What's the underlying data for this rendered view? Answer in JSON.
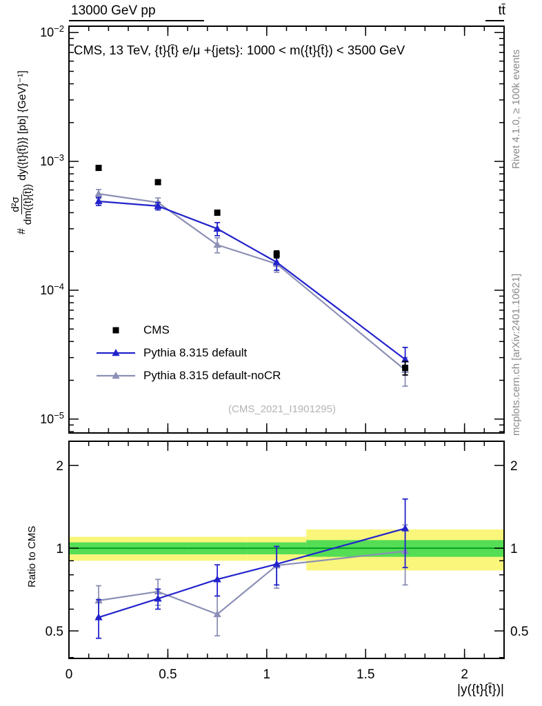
{
  "header": {
    "left": "13000 GeV pp",
    "right": "tt̄"
  },
  "title": "CMS, 13 TeV, {t}{t̄} e/μ +{jets}: 1000 < m({t}{t̄}) < 3500 GeV",
  "watermark": "(CMS_2021_I1901295)",
  "side_notes": {
    "top": "Rivet 4.1.0, ≥ 100k events",
    "bottom": "mcplots.cern.ch [arXiv:2401.10621]"
  },
  "ylabel": {
    "prefix": "#",
    "numerator": "d²σ",
    "denominator": "dm({t}{t̄})",
    "rest": "dy({t}{t̄})} [pb] {GeV}⁻¹]"
  },
  "ratio_ylabel": "Ratio to CMS",
  "xlabel": "|y({t}{t̄})|",
  "legend": [
    {
      "label": "CMS",
      "marker": "square",
      "color": "#000000",
      "line": false
    },
    {
      "label": "Pythia 8.315 default",
      "marker": "triangle",
      "color": "#2222cc",
      "line": true
    },
    {
      "label": "Pythia 8.315 default-noCR",
      "marker": "triangle",
      "color": "#8b8fb5",
      "line": true
    }
  ],
  "colors": {
    "cms": "#000000",
    "pythia_default": "#2222cc",
    "pythia_nocr": "#8b8fb5",
    "band_yellow": "#f9f67b",
    "band_green": "#55dd55",
    "band_center_line": "#00a223"
  },
  "chart_data": {
    "type": "line",
    "x": [
      0.15,
      0.45,
      0.75,
      1.05,
      1.7
    ],
    "xlim": [
      0,
      2.2
    ],
    "xticks": [
      0,
      0.5,
      1,
      1.5,
      2
    ],
    "xminor_step": 0.1,
    "main_panel": {
      "ylog": true,
      "ylim": [
        7.8e-06,
        0.0112
      ],
      "yticks": [
        0.01,
        0.001,
        0.0001,
        1e-05
      ],
      "series": [
        {
          "name": "CMS",
          "color": "#000000",
          "marker": "square",
          "line": false,
          "values": [
            0.00089,
            0.00069,
            0.0004,
            0.00019,
            2.5e-05
          ],
          "errors": [
            3e-05,
            2.5e-05,
            1.8e-05,
            1.2e-05,
            3e-06
          ]
        },
        {
          "name": "Pythia 8.315 default",
          "color": "#2222cc",
          "marker": "triangle",
          "line": true,
          "values": [
            0.00049,
            0.00045,
            0.0003,
            0.000165,
            2.9e-05
          ],
          "errors": [
            3.5e-05,
            3e-05,
            3.5e-05,
            2.2e-05,
            7e-06
          ]
        },
        {
          "name": "Pythia 8.315 default-noCR",
          "color": "#8b8fb5",
          "marker": "triangle",
          "line": true,
          "values": [
            0.00056,
            0.00048,
            0.000225,
            0.00016,
            2.4e-05
          ],
          "errors": [
            4.5e-05,
            4e-05,
            3e-05,
            2.2e-05,
            6e-06
          ]
        }
      ]
    },
    "ratio_panel": {
      "ylog": true,
      "ylim": [
        0.397,
        2.45
      ],
      "yticks": [
        0.5,
        1,
        2
      ],
      "yminors": [
        0.4,
        0.5,
        0.6,
        0.7,
        0.8,
        0.9,
        1,
        2
      ],
      "bands": {
        "edges": [
          0,
          0.3,
          0.6,
          0.9,
          1.2,
          2.2
        ],
        "yellow": [
          [
            0.9,
            1.1
          ],
          [
            0.9,
            1.1
          ],
          [
            0.9,
            1.1
          ],
          [
            0.9,
            1.1
          ],
          [
            0.83,
            1.17
          ]
        ],
        "green": [
          [
            0.95,
            1.05
          ],
          [
            0.95,
            1.05
          ],
          [
            0.95,
            1.05
          ],
          [
            0.95,
            1.05
          ],
          [
            0.93,
            1.07
          ]
        ]
      },
      "series": [
        {
          "name": "Pythia 8.315 default",
          "color": "#2222cc",
          "marker": "triangle",
          "line": true,
          "values": [
            0.56,
            0.655,
            0.77,
            0.875,
            1.18
          ],
          "errors": [
            0.09,
            0.055,
            0.1,
            0.14,
            0.33
          ]
        },
        {
          "name": "Pythia 8.315 default-noCR",
          "color": "#8b8fb5",
          "marker": "triangle",
          "line": true,
          "values": [
            0.645,
            0.695,
            0.575,
            0.865,
            0.975
          ],
          "errors": [
            0.085,
            0.075,
            0.095,
            0.15,
            0.24
          ]
        }
      ]
    }
  }
}
